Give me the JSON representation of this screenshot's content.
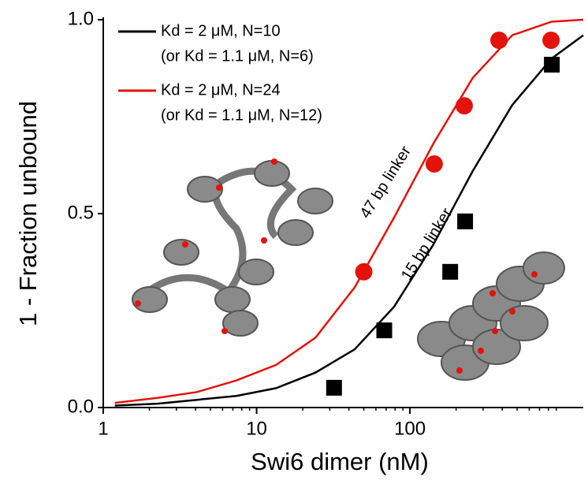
{
  "chart_data": {
    "type": "line",
    "x_label": "Swi6 dimer (nM)",
    "y_label": "1 - Fraction unbound",
    "xscale": "log",
    "xlim": [
      1,
      1350
    ],
    "ylim": [
      0,
      1
    ],
    "xticks": [
      1,
      10,
      100
    ],
    "yticks": [
      {
        "value": 0,
        "label": "0.0"
      },
      0.5,
      {
        "value": 1,
        "label": "1.0"
      }
    ],
    "series": [
      {
        "name": "Kd = 2 μM, N=10",
        "note": "(or Kd = 1.1 μM, N=6)",
        "marker": "line",
        "color": "#000000",
        "x": [
          1.19,
          2.26,
          4.09,
          7.4,
          13.4,
          24.2,
          43.6,
          78.8,
          142,
          257,
          465,
          840,
          1350
        ],
        "values": [
          0.005,
          0.01,
          0.02,
          0.03,
          0.05,
          0.09,
          0.15,
          0.26,
          0.42,
          0.61,
          0.78,
          0.9,
          0.96
        ]
      },
      {
        "name": "Kd = 2 μM, N=24",
        "note": "(or Kd = 1.1 μM, N=12)",
        "marker": "line",
        "color": "#e3120b",
        "x": [
          1.19,
          2.26,
          4.09,
          7.4,
          13.4,
          24.2,
          43.6,
          78.8,
          142,
          257,
          465,
          840,
          1350
        ],
        "values": [
          0.012,
          0.025,
          0.04,
          0.07,
          0.11,
          0.18,
          0.31,
          0.49,
          0.68,
          0.85,
          0.96,
          0.995,
          1.0
        ]
      },
      {
        "marker": "square",
        "color": "#000000",
        "x": [
          32,
          68,
          183,
          229,
          842
        ],
        "values": [
          0.051,
          0.199,
          0.35,
          0.48,
          0.884
        ]
      },
      {
        "marker": "circle",
        "color": "#e3120b",
        "x": [
          50,
          144,
          226,
          381,
          832
        ],
        "values": [
          0.35,
          0.628,
          0.778,
          0.947,
          0.947
        ]
      }
    ],
    "annotations": [
      {
        "text": "47 bp linker",
        "x": 70,
        "y": 0.58
      },
      {
        "text": "15 bp linker",
        "x": 130,
        "y": 0.42
      }
    ]
  }
}
